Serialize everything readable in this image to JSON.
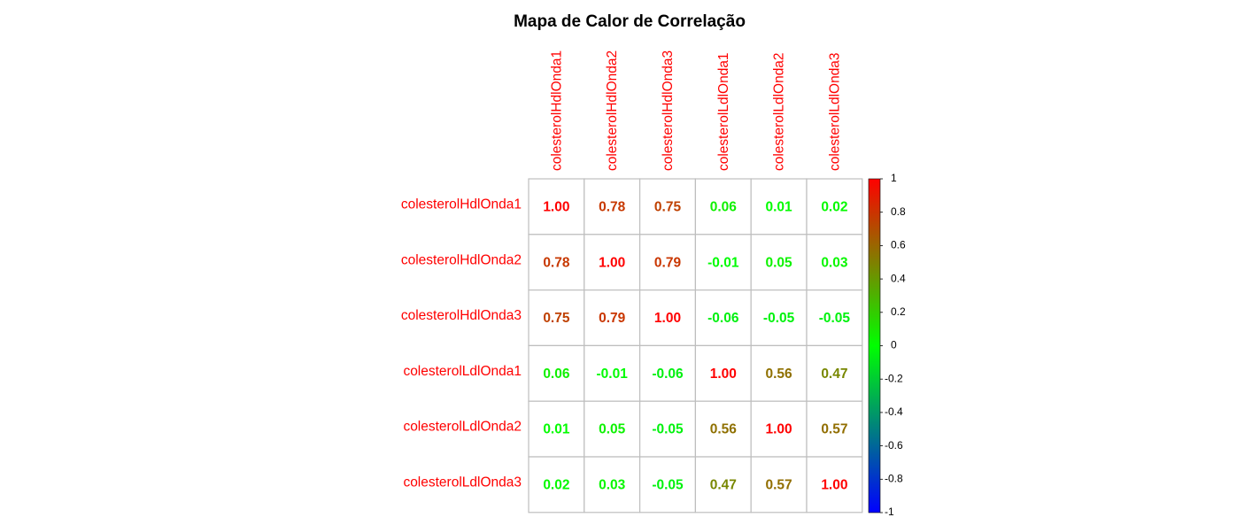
{
  "chart_data": {
    "type": "heatmap",
    "title": "Mapa de Calor de Correlação",
    "row_labels": [
      "colesterolHdlOnda1",
      "colesterolHdlOnda2",
      "colesterolHdlOnda3",
      "colesterolLdlOnda1",
      "colesterolLdlOnda2",
      "colesterolLdlOnda3"
    ],
    "col_labels": [
      "colesterolHdlOnda1",
      "colesterolHdlOnda2",
      "colesterolHdlOnda3",
      "colesterolLdlOnda1",
      "colesterolLdlOnda2",
      "colesterolLdlOnda3"
    ],
    "values": [
      [
        1.0,
        0.78,
        0.75,
        0.06,
        0.01,
        0.02
      ],
      [
        0.78,
        1.0,
        0.79,
        -0.01,
        0.05,
        0.03
      ],
      [
        0.75,
        0.79,
        1.0,
        -0.06,
        -0.05,
        -0.05
      ],
      [
        0.06,
        -0.01,
        -0.06,
        1.0,
        0.56,
        0.47
      ],
      [
        0.01,
        0.05,
        -0.05,
        0.56,
        1.0,
        0.57
      ],
      [
        0.02,
        0.03,
        -0.05,
        0.47,
        0.57,
        1.0
      ]
    ],
    "value_labels": [
      [
        "1.00",
        "0.78",
        "0.75",
        "0.06",
        "0.01",
        "0.02"
      ],
      [
        "0.78",
        "1.00",
        "0.79",
        "-0.01",
        "0.05",
        "0.03"
      ],
      [
        "0.75",
        "0.79",
        "1.00",
        "-0.06",
        "-0.05",
        "-0.05"
      ],
      [
        "0.06",
        "-0.01",
        "-0.06",
        "1.00",
        "0.56",
        "0.47"
      ],
      [
        "0.01",
        "0.05",
        "-0.05",
        "0.56",
        "1.00",
        "0.57"
      ],
      [
        "0.02",
        "0.03",
        "-0.05",
        "0.47",
        "0.57",
        "1.00"
      ]
    ],
    "color_scale": {
      "low_color": "#0000FF",
      "mid_color": "#00FF00",
      "high_color": "#FF0000",
      "range": [
        -1,
        1
      ]
    },
    "legend": {
      "position": "right",
      "tick_values": [
        1,
        0.8,
        0.6,
        0.4,
        0.2,
        0,
        -0.2,
        -0.4,
        -0.6,
        -0.8,
        -1
      ],
      "tick_labels": [
        "1",
        "0.8",
        "0.6",
        "0.4",
        "0.2",
        "0",
        "-0.2",
        "-0.4",
        "-0.6",
        "-0.8",
        "-1"
      ]
    },
    "label_color": "#FF0000",
    "grid_color": "#BEBEBE",
    "cell_fill": "#FFFFFF",
    "grid": true
  }
}
